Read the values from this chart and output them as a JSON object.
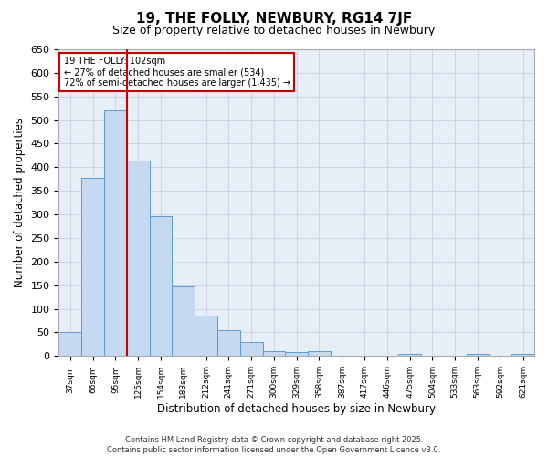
{
  "title": "19, THE FOLLY, NEWBURY, RG14 7JF",
  "subtitle": "Size of property relative to detached houses in Newbury",
  "xlabel": "Distribution of detached houses by size in Newbury",
  "ylabel": "Number of detached properties",
  "categories": [
    "37sqm",
    "66sqm",
    "95sqm",
    "125sqm",
    "154sqm",
    "183sqm",
    "212sqm",
    "241sqm",
    "271sqm",
    "300sqm",
    "329sqm",
    "358sqm",
    "387sqm",
    "417sqm",
    "446sqm",
    "475sqm",
    "504sqm",
    "533sqm",
    "563sqm",
    "592sqm",
    "621sqm"
  ],
  "values": [
    50,
    378,
    520,
    414,
    297,
    147,
    85,
    55,
    30,
    10,
    8,
    10,
    0,
    0,
    0,
    4,
    0,
    0,
    4,
    0,
    4
  ],
  "bar_color": "#c5d9f0",
  "bar_edgecolor": "#5b9bd5",
  "ylim": [
    0,
    650
  ],
  "yticks": [
    0,
    50,
    100,
    150,
    200,
    250,
    300,
    350,
    400,
    450,
    500,
    550,
    600,
    650
  ],
  "red_line_index": 2,
  "annotation_title": "19 THE FOLLY: 102sqm",
  "annotation_line1": "← 27% of detached houses are smaller (534)",
  "annotation_line2": "72% of semi-detached houses are larger (1,435) →",
  "annotation_box_color": "#cc0000",
  "footer_line1": "Contains HM Land Registry data © Crown copyright and database right 2025.",
  "footer_line2": "Contains public sector information licensed under the Open Government Licence v3.0.",
  "plot_bg_color": "#e8eef8",
  "grid_color": "#c8d0e0",
  "fig_bg_color": "#ffffff"
}
